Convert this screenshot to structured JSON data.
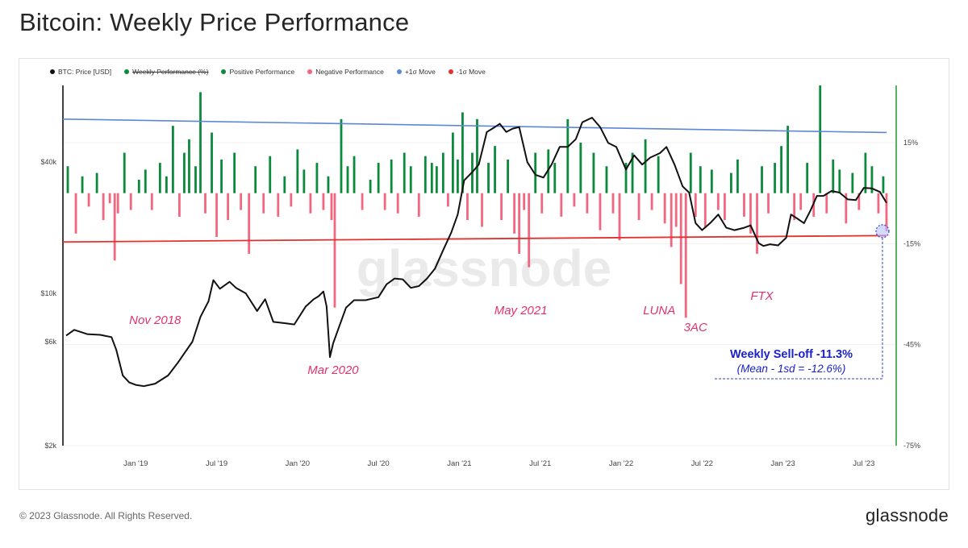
{
  "title": "Bitcoin: Weekly Price Performance",
  "footer": "© 2023 Glassnode. All Rights Reserved.",
  "brand": "glassnode",
  "watermark": "glassnode",
  "colors": {
    "price": "#111111",
    "positive": "#0b8a3c",
    "negative": "#f2677f",
    "plus_sigma": "#5b87d6",
    "minus_sigma": "#e0322f",
    "annotation": "#e0336b",
    "callout": "#1a22c8",
    "right_axis_line": "#2e9e3a"
  },
  "legend": [
    {
      "label": "BTC: Price [USD]",
      "color": "#111111",
      "strike": false
    },
    {
      "label": "Weekly Performance (%)",
      "color": "#0b8a3c",
      "strike": true
    },
    {
      "label": "Positive Performance",
      "color": "#0b8a3c",
      "strike": false
    },
    {
      "label": "Negative Performance",
      "color": "#f2677f",
      "strike": false
    },
    {
      "label": "+1σ Move",
      "color": "#5b87d6",
      "strike": false
    },
    {
      "label": "-1σ Move",
      "color": "#e0322f",
      "strike": false
    }
  ],
  "chart_data": {
    "type": "line",
    "title": "Bitcoin: Weekly Price Performance",
    "x_ticks": [
      "Jan '19",
      "Jul '19",
      "Jan '20",
      "Jul '20",
      "Jan '21",
      "Jul '21",
      "Jan '22",
      "Jul '22",
      "Jan '23",
      "Jul '23"
    ],
    "x_tick_years": [
      2019.0,
      2019.5,
      2020.0,
      2020.5,
      2021.0,
      2021.5,
      2022.0,
      2022.5,
      2023.0,
      2023.5
    ],
    "x_range": [
      2018.55,
      2023.7
    ],
    "left_axis": {
      "label": "BTC: Price [USD]",
      "scale": "log",
      "ticks": [
        "$2k",
        "$6k",
        "$10k",
        "$40k"
      ],
      "tick_values": [
        2000,
        6000,
        10000,
        40000
      ],
      "range": [
        2000,
        90000
      ]
    },
    "right_axis": {
      "label": "Weekly Performance (%)",
      "ticks": [
        "15%",
        "-15%",
        "-45%",
        "-75%"
      ],
      "tick_values": [
        15,
        -15,
        -45,
        -75
      ],
      "range": [
        -75,
        32
      ]
    },
    "price_series": {
      "name": "BTC: Price [USD]",
      "x": [
        2018.57,
        2018.62,
        2018.7,
        2018.78,
        2018.85,
        2018.88,
        2018.92,
        2018.96,
        2019.0,
        2019.05,
        2019.12,
        2019.2,
        2019.26,
        2019.3,
        2019.35,
        2019.4,
        2019.45,
        2019.48,
        2019.52,
        2019.58,
        2019.62,
        2019.68,
        2019.75,
        2019.8,
        2019.85,
        2019.92,
        2019.98,
        2020.05,
        2020.1,
        2020.13,
        2020.16,
        2020.18,
        2020.2,
        2020.22,
        2020.25,
        2020.3,
        2020.35,
        2020.42,
        2020.5,
        2020.55,
        2020.6,
        2020.65,
        2020.7,
        2020.75,
        2020.8,
        2020.85,
        2020.9,
        2020.95,
        2020.99,
        2021.03,
        2021.08,
        2021.12,
        2021.17,
        2021.22,
        2021.25,
        2021.29,
        2021.33,
        2021.37,
        2021.42,
        2021.47,
        2021.52,
        2021.57,
        2021.62,
        2021.67,
        2021.72,
        2021.76,
        2021.82,
        2021.87,
        2021.92,
        2021.97,
        2022.03,
        2022.08,
        2022.13,
        2022.18,
        2022.24,
        2022.28,
        2022.33,
        2022.38,
        2022.42,
        2022.46,
        2022.5,
        2022.55,
        2022.6,
        2022.65,
        2022.7,
        2022.76,
        2022.8,
        2022.85,
        2022.88,
        2022.92,
        2022.97,
        2023.02,
        2023.05,
        2023.09,
        2023.13,
        2023.17,
        2023.21,
        2023.25,
        2023.3,
        2023.35,
        2023.4,
        2023.45,
        2023.5,
        2023.55,
        2023.6,
        2023.64
      ],
      "y": [
        6400,
        6800,
        6500,
        6450,
        6300,
        5500,
        4200,
        3900,
        3800,
        3750,
        3850,
        4200,
        4800,
        5300,
        6000,
        7800,
        9200,
        11500,
        10500,
        11300,
        10600,
        10000,
        8300,
        9400,
        7400,
        7300,
        7200,
        8700,
        9400,
        9700,
        10200,
        8700,
        5100,
        5900,
        6800,
        8600,
        9300,
        9300,
        9600,
        11000,
        11700,
        11600,
        10600,
        10800,
        11700,
        13000,
        15800,
        19000,
        23000,
        33000,
        36000,
        39000,
        55000,
        58000,
        60000,
        55000,
        57000,
        58000,
        40000,
        35000,
        34000,
        39000,
        47000,
        47000,
        51000,
        61000,
        64000,
        58000,
        49000,
        47000,
        37000,
        43000,
        39000,
        42000,
        44000,
        47000,
        39000,
        31000,
        29000,
        21000,
        19500,
        21000,
        23000,
        20000,
        19500,
        20000,
        20500,
        17000,
        16500,
        16800,
        16600,
        18000,
        23000,
        22000,
        21000,
        24000,
        28000,
        28000,
        29500,
        29000,
        27000,
        26800,
        30500,
        30300,
        29200,
        26000
      ]
    },
    "performance_series": {
      "name": "Weekly Performance (%)",
      "x": [
        2018.58,
        2018.63,
        2018.67,
        2018.71,
        2018.76,
        2018.8,
        2018.84,
        2018.87,
        2018.89,
        2018.93,
        2018.97,
        2019.02,
        2019.06,
        2019.1,
        2019.15,
        2019.19,
        2019.23,
        2019.27,
        2019.3,
        2019.33,
        2019.37,
        2019.4,
        2019.43,
        2019.47,
        2019.5,
        2019.53,
        2019.57,
        2019.61,
        2019.65,
        2019.7,
        2019.74,
        2019.79,
        2019.83,
        2019.88,
        2019.92,
        2019.96,
        2020.0,
        2020.04,
        2020.08,
        2020.12,
        2020.16,
        2020.19,
        2020.21,
        2020.23,
        2020.27,
        2020.31,
        2020.35,
        2020.4,
        2020.45,
        2020.5,
        2020.54,
        2020.58,
        2020.62,
        2020.66,
        2020.7,
        2020.75,
        2020.79,
        2020.83,
        2020.86,
        2020.9,
        2020.93,
        2020.96,
        2020.99,
        2021.02,
        2021.05,
        2021.08,
        2021.11,
        2021.14,
        2021.18,
        2021.22,
        2021.26,
        2021.3,
        2021.34,
        2021.37,
        2021.4,
        2021.43,
        2021.47,
        2021.51,
        2021.55,
        2021.59,
        2021.63,
        2021.67,
        2021.71,
        2021.75,
        2021.79,
        2021.83,
        2021.87,
        2021.91,
        2021.95,
        2021.99,
        2022.03,
        2022.07,
        2022.11,
        2022.15,
        2022.19,
        2022.23,
        2022.27,
        2022.31,
        2022.34,
        2022.37,
        2022.4,
        2022.43,
        2022.46,
        2022.49,
        2022.52,
        2022.56,
        2022.6,
        2022.64,
        2022.68,
        2022.72,
        2022.76,
        2022.8,
        2022.84,
        2022.87,
        2022.91,
        2022.95,
        2022.99,
        2023.03,
        2023.07,
        2023.11,
        2023.15,
        2023.19,
        2023.23,
        2023.27,
        2023.31,
        2023.35,
        2023.39,
        2023.43,
        2023.47,
        2023.51,
        2023.55,
        2023.59,
        2023.62,
        2023.64
      ],
      "y": [
        8,
        -12,
        5,
        -4,
        6,
        -8,
        -3,
        -20,
        -6,
        12,
        -5,
        4,
        7,
        -5,
        9,
        5,
        20,
        -7,
        12,
        16,
        8,
        30,
        -6,
        18,
        -13,
        10,
        -8,
        12,
        -5,
        -18,
        8,
        -6,
        11,
        -7,
        5,
        -4,
        13,
        7,
        -6,
        9,
        -5,
        5,
        -8,
        -34,
        22,
        8,
        11,
        -5,
        4,
        9,
        -5,
        10,
        -6,
        12,
        8,
        -7,
        11,
        9,
        8,
        12,
        -4,
        18,
        10,
        24,
        -8,
        12,
        22,
        -10,
        9,
        14,
        -8,
        10,
        -12,
        -18,
        -5,
        -22,
        12,
        -6,
        13,
        9,
        -7,
        22,
        -4,
        15,
        -6,
        12,
        -11,
        8,
        -6,
        -14,
        9,
        12,
        -8,
        16,
        -5,
        11,
        -9,
        -16,
        -10,
        -27,
        -37,
        12,
        -7,
        8,
        -10,
        7,
        -5,
        -8,
        6,
        10,
        -7,
        -12,
        -18,
        8,
        -6,
        9,
        14,
        20,
        -8,
        -5,
        9,
        -7,
        32,
        -6,
        10,
        7,
        -9,
        6,
        -5,
        12,
        8,
        -6,
        5,
        -11.3
      ]
    },
    "plus_sigma_line": {
      "name": "+1σ Move",
      "x": [
        2018.55,
        2023.64
      ],
      "y": [
        22,
        18
      ]
    },
    "minus_sigma_line": {
      "name": "-1σ Move",
      "x": [
        2018.55,
        2023.64
      ],
      "y": [
        -14.5,
        -12.6
      ]
    },
    "annotations": [
      {
        "label": "Nov 2018",
        "x": 2018.87
      },
      {
        "label": "Mar 2020",
        "x": 2020.21
      },
      {
        "label": "May 2021",
        "x": 2021.37
      },
      {
        "label": "LUNA",
        "x": 2022.37
      },
      {
        "label": "3AC",
        "x": 2022.46
      },
      {
        "label": "FTX",
        "x": 2022.87
      }
    ],
    "callout": {
      "title": "Weekly Sell-off -11.3%",
      "subtitle": "(Mean - 1sd = -12.6%)",
      "value": -11.3,
      "threshold": -12.6,
      "x": 2023.64
    }
  }
}
